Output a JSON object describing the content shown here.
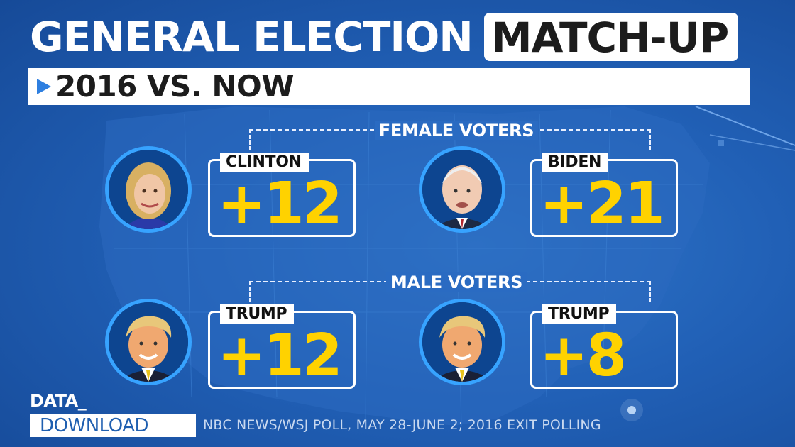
{
  "title": {
    "main": "GENERAL ELECTION",
    "highlight": "MATCH-UP",
    "subtitle": "2016 VS. NOW"
  },
  "groups": [
    {
      "label": "FEMALE VOTERS"
    },
    {
      "label": "MALE VOTERS"
    }
  ],
  "cards": [
    {
      "name": "CLINTON",
      "value": "+12",
      "portrait": "portrait-clinton"
    },
    {
      "name": "BIDEN",
      "value": "+21",
      "portrait": "portrait-biden"
    },
    {
      "name": "TRUMP",
      "value": "+12",
      "portrait": "portrait-trump"
    },
    {
      "name": "TRUMP",
      "value": "+8",
      "portrait": "portrait-trump"
    }
  ],
  "footer": {
    "brand_top": "DATA_",
    "brand_bottom": "DOWNLOAD",
    "source": "NBC NEWS/WSJ POLL, MAY 28-JUNE 2; 2016 EXIT POLLING"
  },
  "colors": {
    "accent_yellow": "#ffd200",
    "ring_blue": "#37a3ff",
    "background_blue": "#2160b6"
  }
}
